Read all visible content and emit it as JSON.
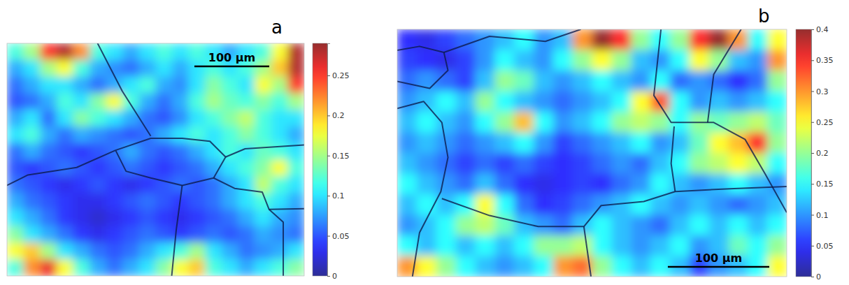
{
  "chart_data": [
    {
      "type": "heatmap",
      "title": "a",
      "tick_labels": false,
      "xlim": [
        0,
        397
      ],
      "ylim": [
        0,
        311
      ],
      "scale_bar": {
        "value": 100,
        "label": "100 μm"
      },
      "colorbar": {
        "range": [
          0,
          0.29
        ],
        "ticks": [
          0,
          0.05,
          0.1,
          0.15,
          0.2,
          0.25
        ]
      },
      "cells": [
        [
          0.12,
          0.15,
          0.25,
          0.28,
          0.22,
          0.12,
          0.1,
          0.08,
          0.1,
          0.12,
          0.1,
          0.12,
          0.1,
          0.08,
          0.1,
          0.12,
          0.18,
          0.28
        ],
        [
          0.08,
          0.1,
          0.15,
          0.18,
          0.12,
          0.08,
          0.07,
          0.06,
          0.08,
          0.1,
          0.08,
          0.1,
          0.12,
          0.1,
          0.12,
          0.15,
          0.2,
          0.28
        ],
        [
          0.06,
          0.08,
          0.1,
          0.1,
          0.08,
          0.06,
          0.08,
          0.1,
          0.12,
          0.08,
          0.07,
          0.1,
          0.14,
          0.12,
          0.1,
          0.18,
          0.15,
          0.25
        ],
        [
          0.05,
          0.06,
          0.08,
          0.12,
          0.1,
          0.14,
          0.18,
          0.12,
          0.08,
          0.06,
          0.08,
          0.12,
          0.15,
          0.13,
          0.12,
          0.14,
          0.12,
          0.15
        ],
        [
          0.08,
          0.1,
          0.06,
          0.1,
          0.14,
          0.12,
          0.1,
          0.08,
          0.06,
          0.05,
          0.07,
          0.1,
          0.12,
          0.14,
          0.16,
          0.12,
          0.1,
          0.1
        ],
        [
          0.1,
          0.12,
          0.08,
          0.06,
          0.08,
          0.07,
          0.06,
          0.05,
          0.06,
          0.08,
          0.1,
          0.12,
          0.1,
          0.12,
          0.14,
          0.12,
          0.1,
          0.08
        ],
        [
          0.06,
          0.08,
          0.06,
          0.05,
          0.04,
          0.05,
          0.06,
          0.08,
          0.06,
          0.05,
          0.06,
          0.08,
          0.1,
          0.12,
          0.1,
          0.13,
          0.12,
          0.1
        ],
        [
          0.05,
          0.04,
          0.05,
          0.06,
          0.05,
          0.04,
          0.05,
          0.06,
          0.05,
          0.04,
          0.05,
          0.06,
          0.08,
          0.1,
          0.12,
          0.14,
          0.18,
          0.12
        ],
        [
          0.06,
          0.05,
          0.04,
          0.03,
          0.04,
          0.05,
          0.04,
          0.03,
          0.04,
          0.05,
          0.06,
          0.05,
          0.06,
          0.08,
          0.1,
          0.16,
          0.12,
          0.1
        ],
        [
          0.08,
          0.06,
          0.05,
          0.04,
          0.03,
          0.03,
          0.04,
          0.05,
          0.06,
          0.05,
          0.04,
          0.05,
          0.06,
          0.08,
          0.1,
          0.12,
          0.1,
          0.08
        ],
        [
          0.1,
          0.08,
          0.06,
          0.04,
          0.03,
          0.02,
          0.03,
          0.04,
          0.05,
          0.04,
          0.03,
          0.04,
          0.05,
          0.06,
          0.08,
          0.1,
          0.08,
          0.07
        ],
        [
          0.14,
          0.1,
          0.08,
          0.06,
          0.04,
          0.03,
          0.04,
          0.05,
          0.06,
          0.05,
          0.04,
          0.05,
          0.06,
          0.05,
          0.06,
          0.08,
          0.07,
          0.06
        ],
        [
          0.18,
          0.2,
          0.15,
          0.1,
          0.08,
          0.06,
          0.05,
          0.06,
          0.08,
          0.1,
          0.12,
          0.15,
          0.1,
          0.08,
          0.06,
          0.07,
          0.08,
          0.1
        ],
        [
          0.12,
          0.22,
          0.26,
          0.18,
          0.12,
          0.08,
          0.06,
          0.08,
          0.1,
          0.14,
          0.18,
          0.2,
          0.12,
          0.1,
          0.08,
          0.1,
          0.12,
          0.14
        ]
      ],
      "boundaries": [
        [
          [
            121,
            0
          ],
          [
            154,
            64
          ],
          [
            192,
            124
          ]
        ],
        [
          [
            0,
            190
          ],
          [
            28,
            176
          ],
          [
            93,
            166
          ],
          [
            145,
            143
          ],
          [
            192,
            127
          ],
          [
            234,
            127
          ],
          [
            271,
            131
          ],
          [
            292,
            152
          ],
          [
            276,
            180
          ],
          [
            234,
            190
          ],
          [
            192,
            180
          ],
          [
            159,
            171
          ],
          [
            145,
            143
          ]
        ],
        [
          [
            292,
            152
          ],
          [
            318,
            141
          ],
          [
            397,
            136
          ]
        ],
        [
          [
            234,
            190
          ],
          [
            226,
            250
          ],
          [
            220,
            311
          ]
        ],
        [
          [
            276,
            180
          ],
          [
            304,
            194
          ],
          [
            341,
            199
          ],
          [
            350,
            222
          ],
          [
            397,
            221
          ]
        ],
        [
          [
            350,
            222
          ],
          [
            369,
            239
          ],
          [
            369,
            311
          ]
        ]
      ]
    },
    {
      "type": "heatmap",
      "title": "b",
      "tick_labels": false,
      "xlim": [
        0,
        384
      ],
      "ylim": [
        0,
        247
      ],
      "scale_bar": {
        "value": 100,
        "label": "100 μm"
      },
      "colorbar": {
        "range": [
          0,
          0.4
        ],
        "ticks": [
          0,
          0.05,
          0.1,
          0.15,
          0.2,
          0.25,
          0.3,
          0.35,
          0.4
        ]
      },
      "cells": [
        [
          0.05,
          0.04,
          0.06,
          0.08,
          0.1,
          0.12,
          0.15,
          0.1,
          0.12,
          0.3,
          0.4,
          0.35,
          0.2,
          0.15,
          0.2,
          0.35,
          0.4,
          0.3,
          0.15,
          0.25
        ],
        [
          0.06,
          0.05,
          0.04,
          0.06,
          0.1,
          0.15,
          0.12,
          0.1,
          0.15,
          0.2,
          0.25,
          0.2,
          0.12,
          0.1,
          0.15,
          0.25,
          0.2,
          0.12,
          0.1,
          0.3
        ],
        [
          0.08,
          0.1,
          0.08,
          0.06,
          0.12,
          0.2,
          0.18,
          0.12,
          0.1,
          0.12,
          0.15,
          0.12,
          0.1,
          0.15,
          0.08,
          0.1,
          0.08,
          0.05,
          0.08,
          0.2
        ],
        [
          0.1,
          0.12,
          0.15,
          0.12,
          0.2,
          0.15,
          0.12,
          0.1,
          0.08,
          0.1,
          0.12,
          0.15,
          0.25,
          0.33,
          0.15,
          0.1,
          0.12,
          0.1,
          0.12,
          0.15
        ],
        [
          0.12,
          0.15,
          0.12,
          0.1,
          0.15,
          0.2,
          0.28,
          0.15,
          0.1,
          0.12,
          0.15,
          0.2,
          0.22,
          0.2,
          0.15,
          0.2,
          0.18,
          0.2,
          0.22,
          0.18
        ],
        [
          0.1,
          0.12,
          0.1,
          0.08,
          0.1,
          0.12,
          0.15,
          0.1,
          0.06,
          0.08,
          0.1,
          0.12,
          0.15,
          0.1,
          0.12,
          0.18,
          0.25,
          0.28,
          0.35,
          0.2
        ],
        [
          0.12,
          0.1,
          0.08,
          0.06,
          0.08,
          0.06,
          0.08,
          0.06,
          0.05,
          0.06,
          0.08,
          0.1,
          0.08,
          0.12,
          0.15,
          0.2,
          0.22,
          0.25,
          0.22,
          0.15
        ],
        [
          0.15,
          0.12,
          0.1,
          0.08,
          0.12,
          0.08,
          0.05,
          0.04,
          0.05,
          0.06,
          0.05,
          0.08,
          0.1,
          0.15,
          0.12,
          0.1,
          0.12,
          0.15,
          0.12,
          0.1
        ],
        [
          0.12,
          0.15,
          0.12,
          0.15,
          0.25,
          0.15,
          0.08,
          0.05,
          0.06,
          0.08,
          0.1,
          0.12,
          0.15,
          0.12,
          0.1,
          0.12,
          0.1,
          0.08,
          0.1,
          0.12
        ],
        [
          0.1,
          0.12,
          0.15,
          0.2,
          0.22,
          0.18,
          0.12,
          0.1,
          0.08,
          0.12,
          0.15,
          0.12,
          0.1,
          0.08,
          0.12,
          0.15,
          0.12,
          0.15,
          0.12,
          0.15
        ],
        [
          0.15,
          0.12,
          0.15,
          0.12,
          0.15,
          0.12,
          0.15,
          0.2,
          0.2,
          0.22,
          0.15,
          0.12,
          0.1,
          0.12,
          0.15,
          0.1,
          0.12,
          0.18,
          0.15,
          0.2
        ],
        [
          0.3,
          0.25,
          0.2,
          0.15,
          0.12,
          0.1,
          0.12,
          0.15,
          0.3,
          0.32,
          0.2,
          0.15,
          0.12,
          0.15,
          0.12,
          0.06,
          0.1,
          0.12,
          0.15,
          0.25
        ]
      ],
      "boundaries": [
        [
          [
            0,
            21
          ],
          [
            22,
            17
          ],
          [
            46,
            23
          ],
          [
            50,
            41
          ],
          [
            32,
            59
          ],
          [
            0,
            52
          ]
        ],
        [
          [
            46,
            23
          ],
          [
            91,
            7
          ],
          [
            146,
            12
          ],
          [
            181,
            0
          ]
        ],
        [
          [
            0,
            79
          ],
          [
            26,
            72
          ],
          [
            44,
            93
          ],
          [
            50,
            128
          ],
          [
            43,
            162
          ],
          [
            22,
            203
          ],
          [
            15,
            247
          ]
        ],
        [
          [
            44,
            169
          ],
          [
            91,
            186
          ],
          [
            139,
            197
          ],
          [
            184,
            197
          ],
          [
            201,
            176
          ],
          [
            243,
            172
          ],
          [
            274,
            162
          ],
          [
            332,
            159
          ],
          [
            384,
            157
          ]
        ],
        [
          [
            260,
            0
          ],
          [
            253,
            66
          ],
          [
            270,
            93
          ],
          [
            312,
            93
          ],
          [
            343,
            110
          ],
          [
            363,
            145
          ],
          [
            384,
            183
          ]
        ],
        [
          [
            273,
            97
          ],
          [
            270,
            134
          ],
          [
            274,
            162
          ]
        ],
        [
          [
            339,
            0
          ],
          [
            312,
            45
          ],
          [
            306,
            93
          ]
        ],
        [
          [
            184,
            197
          ],
          [
            191,
            247
          ]
        ]
      ]
    }
  ]
}
